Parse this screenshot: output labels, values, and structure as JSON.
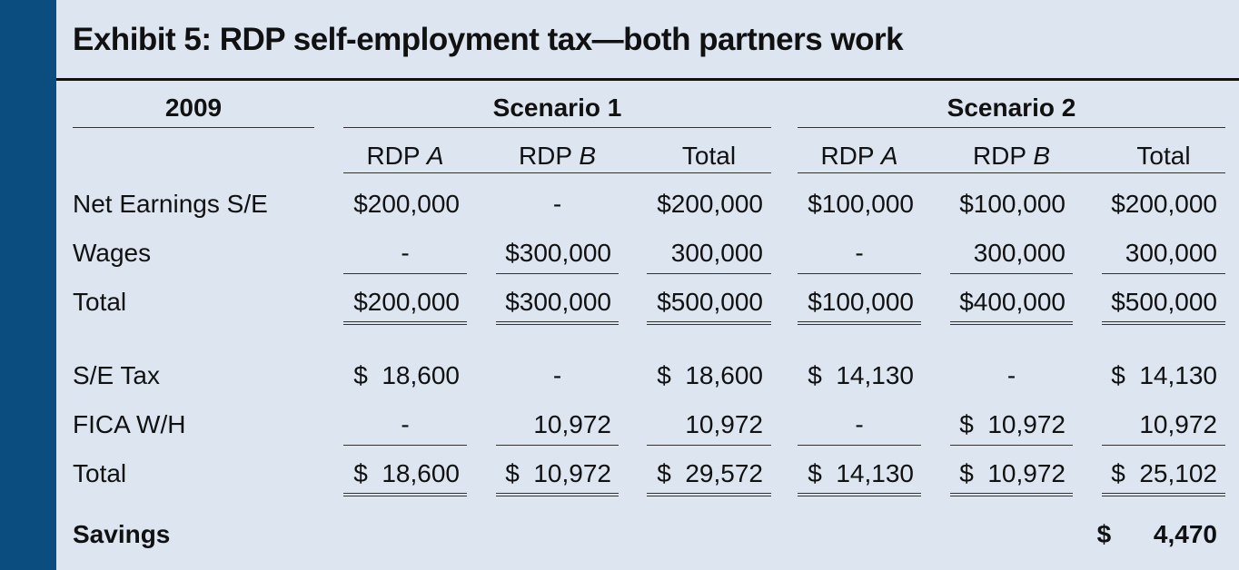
{
  "title": "Exhibit 5: RDP self-employment tax—both partners work",
  "year": "2009",
  "scenarios": [
    "Scenario 1",
    "Scenario 2"
  ],
  "columns": [
    {
      "prefix": "RDP ",
      "suffix": "A"
    },
    {
      "prefix": "RDP ",
      "suffix": "B"
    },
    {
      "prefix": "Total",
      "suffix": ""
    },
    {
      "prefix": "RDP ",
      "suffix": "A"
    },
    {
      "prefix": "RDP ",
      "suffix": "B"
    },
    {
      "prefix": "Total",
      "suffix": ""
    }
  ],
  "rows": [
    {
      "label": "Net Earnings S/E",
      "values": [
        "$200,000",
        "-",
        "$200,000",
        "$100,000",
        "$100,000",
        "$200,000"
      ]
    },
    {
      "label": "Wages",
      "values": [
        "-",
        "$300,000",
        "300,000",
        "-",
        "300,000",
        "300,000"
      ]
    },
    {
      "label": "Total",
      "values": [
        "$200,000",
        "$300,000",
        "$500,000",
        "$100,000",
        "$400,000",
        "$500,000"
      ]
    },
    {
      "label": "S/E Tax",
      "values": [
        "$  18,600",
        "-",
        "$  18,600",
        "$  14,130",
        "-",
        "$  14,130"
      ]
    },
    {
      "label": "FICA W/H",
      "values": [
        "-",
        "10,972",
        "10,972",
        "-",
        "$  10,972",
        "10,972"
      ]
    },
    {
      "label": "Total",
      "values": [
        "$  18,600",
        "$  10,972",
        "$  29,572",
        "$  14,130",
        "$  10,972",
        "$  25,102"
      ]
    }
  ],
  "savings": {
    "label": "Savings",
    "value": "$      4,470"
  }
}
